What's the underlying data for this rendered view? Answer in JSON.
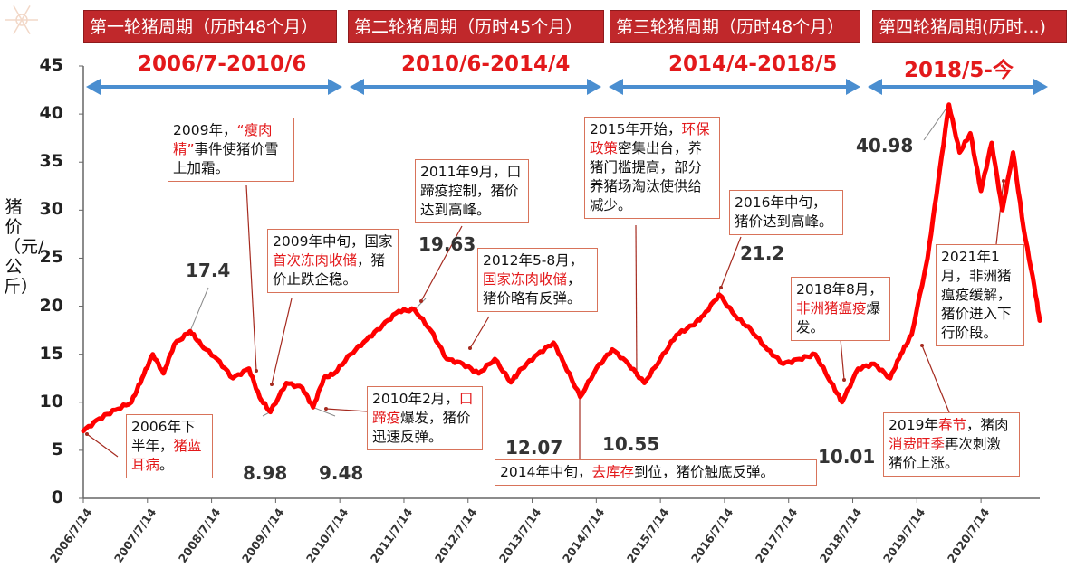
{
  "cycles": [
    {
      "header": "第一轮猪周期（历时48个月）",
      "range": "2006/7-2010/6"
    },
    {
      "header": "第二轮猪周期（历时45个月）",
      "range": "2010/6-2014/4"
    },
    {
      "header": "第三轮猪周期（历时48个月）",
      "range": "2014/4-2018/5"
    },
    {
      "header": "第四轮猪周期(历时...)",
      "range": "2018/5-今"
    }
  ],
  "annotations": {
    "a2006": {
      "pre": "2006年下半年，",
      "hl": "猪蓝耳病",
      "post": "。"
    },
    "a2009": {
      "pre": "2009年，",
      "hl": "“瘦肉精”",
      "post": "事件使猪价雪上加霜。"
    },
    "a2009mid": {
      "pre": "2009年中旬，国家",
      "hl": "首次冻肉收储",
      "post": "，猪价止跌企稳。"
    },
    "a2010": {
      "pre": "2010年2月，",
      "hl": "口蹄疫",
      "post": "爆发，猪价迅速反弹。"
    },
    "a2011": {
      "pre": "2011年9月，口蹄疫控制，猪价达到高峰。",
      "hl": "",
      "post": ""
    },
    "a2012": {
      "pre": "2012年5-8月，",
      "hl": "国家冻肉收储",
      "post": "，猪价略有反弹。"
    },
    "a2014": {
      "pre": "2014年中旬，",
      "hl": "去库存",
      "post": "到位，猪价触底反弹。"
    },
    "a2015": {
      "pre": "2015年开始，",
      "hl": "环保政策",
      "post": "密集出台，养猪门槛提高，部分养猪场淘汰使供给减少。"
    },
    "a2016": {
      "pre": "2016年中旬，猪价达到高峰。",
      "hl": "",
      "post": ""
    },
    "a2018": {
      "pre": "2018年8月，",
      "hl": "非洲猪瘟疫",
      "post": "爆发。"
    },
    "a2019": {
      "pre": "2019年",
      "hl": "春节",
      "post": "，猪肉",
      "hl2": "消费旺季",
      "post2": "再次刺激猪价上涨。"
    },
    "a2021": {
      "pre": "2021年1月，非洲猪瘟疫缓解，猪价进入下行阶段。",
      "hl": "",
      "post": ""
    }
  },
  "chart_data": {
    "type": "line",
    "title": "",
    "ylabel": "猪价（元/公斤）",
    "ylim": [
      0,
      45
    ],
    "yticks": [
      0,
      5,
      10,
      15,
      20,
      25,
      30,
      35,
      40,
      45
    ],
    "xticks": [
      "2006/7/14",
      "2007/7/14",
      "2008/7/14",
      "2009/7/14",
      "2010/7/14",
      "2011/7/14",
      "2012/7/14",
      "2013/7/14",
      "2014/7/14",
      "2015/7/14",
      "2016/7/14",
      "2017/7/14",
      "2018/7/14",
      "2019/7/14",
      "2020/7/14"
    ],
    "color": "#ff0000",
    "series": [
      {
        "x": [
          "2006-07",
          "2006-10",
          "2007-01",
          "2007-04",
          "2007-06",
          "2007-08",
          "2007-10",
          "2007-12",
          "2008-03",
          "2008-05",
          "2008-08",
          "2008-11",
          "2009-02",
          "2009-04",
          "2009-06",
          "2009-09",
          "2009-12",
          "2010-02",
          "2010-04",
          "2010-06",
          "2010-09",
          "2010-12",
          "2011-03",
          "2011-06",
          "2011-09",
          "2011-12",
          "2012-03",
          "2012-06",
          "2012-09",
          "2012-12",
          "2013-03",
          "2013-05",
          "2013-08",
          "2013-11",
          "2014-01",
          "2014-04",
          "2014-07",
          "2014-10",
          "2015-01",
          "2015-04",
          "2015-07",
          "2015-10",
          "2016-01",
          "2016-03",
          "2016-06",
          "2016-09",
          "2016-12",
          "2017-03",
          "2017-06",
          "2017-09",
          "2017-12",
          "2018-03",
          "2018-05",
          "2018-08",
          "2018-11",
          "2019-02",
          "2019-04",
          "2019-06",
          "2019-09",
          "2019-11",
          "2020-01",
          "2020-03",
          "2020-05",
          "2020-07",
          "2020-09",
          "2020-11",
          "2021-01",
          "2021-03",
          "2021-05",
          "2021-06"
        ],
        "y": [
          7.0,
          8.3,
          9.2,
          10.0,
          12.5,
          15.0,
          13.0,
          16.0,
          17.4,
          16.0,
          14.5,
          12.5,
          13.5,
          10.5,
          8.98,
          12.0,
          11.5,
          9.48,
          12.5,
          13.0,
          15.0,
          16.5,
          18.0,
          19.5,
          19.63,
          17.5,
          14.5,
          14.0,
          13.0,
          14.5,
          12.07,
          13.5,
          15.0,
          16.2,
          14.0,
          10.55,
          13.5,
          15.5,
          14.0,
          12.0,
          14.5,
          17.0,
          18.0,
          19.0,
          21.2,
          19.0,
          17.5,
          15.5,
          14.0,
          14.5,
          15.0,
          12.0,
          10.01,
          13.5,
          14.0,
          12.5,
          15.0,
          17.0,
          25.0,
          33.0,
          40.98,
          36.0,
          38.0,
          32.0,
          37.0,
          30.0,
          36.0,
          28.0,
          22.0,
          18.5
        ]
      }
    ],
    "point_labels": [
      {
        "x": "2008-03",
        "y": 17.4,
        "text": "17.4"
      },
      {
        "x": "2009-06",
        "y": 8.98,
        "text": "8.98"
      },
      {
        "x": "2010-02",
        "y": 9.48,
        "text": "9.48"
      },
      {
        "x": "2011-09",
        "y": 19.63,
        "text": "19.63"
      },
      {
        "x": "2013-03",
        "y": 12.07,
        "text": "12.07"
      },
      {
        "x": "2014-04",
        "y": 10.55,
        "text": "10.55"
      },
      {
        "x": "2016-06",
        "y": 21.2,
        "text": "21.2"
      },
      {
        "x": "2018-05",
        "y": 10.01,
        "text": "10.01"
      },
      {
        "x": "2020-01",
        "y": 40.98,
        "text": "40.98"
      }
    ]
  }
}
